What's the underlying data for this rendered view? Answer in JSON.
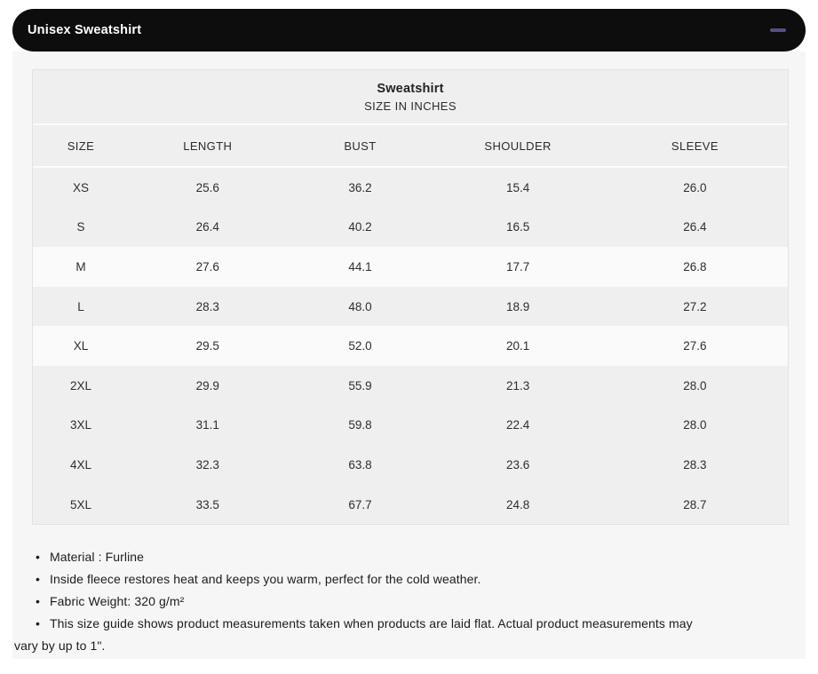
{
  "accordion": {
    "title": "Unisex Sweatshirt",
    "collapse_icon": "minus-icon"
  },
  "chart": {
    "title": "Sweatshirt",
    "subtitle": "SIZE IN INCHES",
    "columns": [
      "SIZE",
      "LENGTH",
      "BUST",
      "SHOULDER",
      "SLEEVE"
    ],
    "rows": [
      {
        "size": "XS",
        "length": "25.6",
        "bust": "36.2",
        "shoulder": "15.4",
        "sleeve": "26.0",
        "highlight": false
      },
      {
        "size": "S",
        "length": "26.4",
        "bust": "40.2",
        "shoulder": "16.5",
        "sleeve": "26.4",
        "highlight": false
      },
      {
        "size": "M",
        "length": "27.6",
        "bust": "44.1",
        "shoulder": "17.7",
        "sleeve": "26.8",
        "highlight": true
      },
      {
        "size": "L",
        "length": "28.3",
        "bust": "48.0",
        "shoulder": "18.9",
        "sleeve": "27.2",
        "highlight": false
      },
      {
        "size": "XL",
        "length": "29.5",
        "bust": "52.0",
        "shoulder": "20.1",
        "sleeve": "27.6",
        "highlight": true
      },
      {
        "size": "2XL",
        "length": "29.9",
        "bust": "55.9",
        "shoulder": "21.3",
        "sleeve": "28.0",
        "highlight": false
      },
      {
        "size": "3XL",
        "length": "31.1",
        "bust": "59.8",
        "shoulder": "22.4",
        "sleeve": "28.0",
        "highlight": false
      },
      {
        "size": "4XL",
        "length": "32.3",
        "bust": "63.8",
        "shoulder": "23.6",
        "sleeve": "28.3",
        "highlight": false
      },
      {
        "size": "5XL",
        "length": "33.5",
        "bust": "67.7",
        "shoulder": "24.8",
        "sleeve": "28.7",
        "highlight": false
      }
    ]
  },
  "notes": [
    "Material : Furline",
    "Inside fleece restores heat and keeps you warm, perfect for the cold weather.",
    "Fabric Weight: 320 g/m²",
    "This size guide shows product measurements taken when products are laid flat. Actual product measurements may vary by up to 1\"."
  ],
  "colors": {
    "header_bg": "#0d0d0d",
    "header_text": "#ffffff",
    "minus": "#554f83",
    "panel_bg": "#f6f6f6",
    "row_gray": "#efefef",
    "row_light": "#fafafa",
    "table_border": "#e2e2e2",
    "text_dark": "#232323"
  }
}
